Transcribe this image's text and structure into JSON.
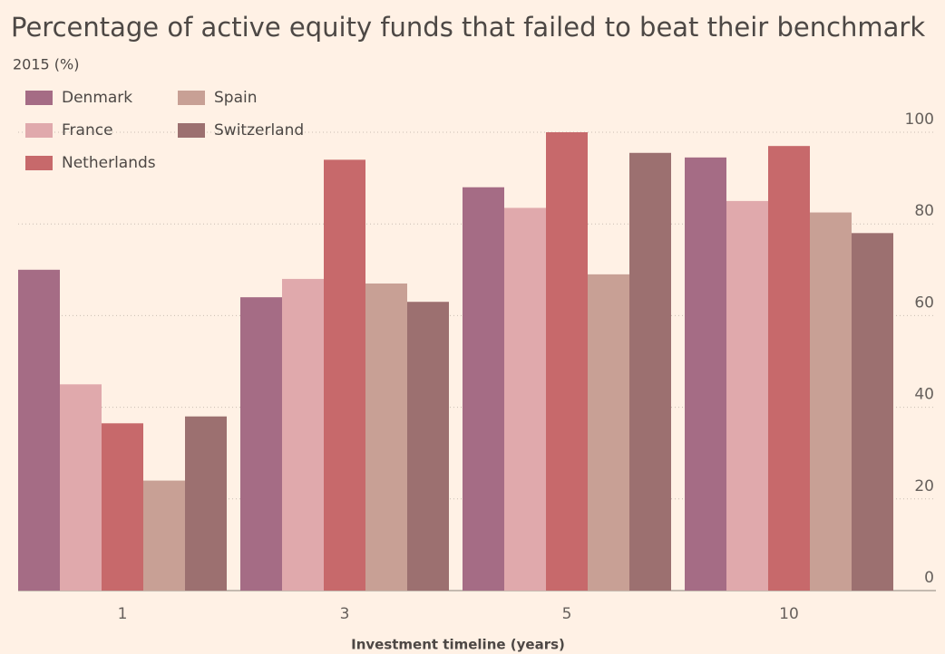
{
  "chart_data": {
    "type": "bar",
    "title": "Percentage of active equity funds that failed to beat their benchmark",
    "subtitle": "2015 (%)",
    "x_label": "Investment timeline (years)",
    "categories": [
      "1",
      "3",
      "5",
      "10"
    ],
    "series": [
      {
        "name": "Denmark",
        "color": "#a56c85",
        "values": [
          70,
          64,
          88,
          94.5
        ]
      },
      {
        "name": "France",
        "color": "#e0a9ac",
        "values": [
          45,
          68,
          83.5,
          85
        ]
      },
      {
        "name": "Netherlands",
        "color": "#c7696b",
        "values": [
          36.5,
          94,
          100,
          97
        ]
      },
      {
        "name": "Spain",
        "color": "#c8a095",
        "values": [
          24,
          67,
          69,
          82.5
        ]
      },
      {
        "name": "Switzerland",
        "color": "#9c7070",
        "values": [
          38,
          63,
          95.5,
          78
        ]
      }
    ],
    "ylim": [
      0,
      100
    ],
    "yticks": [
      0,
      20,
      40,
      60,
      80,
      100
    ],
    "grid": true,
    "y_axis_side": "right"
  }
}
